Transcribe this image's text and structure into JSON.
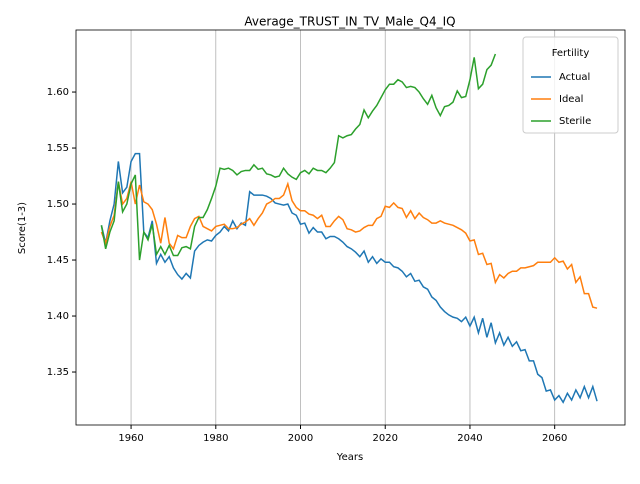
{
  "chart_data": {
    "type": "line",
    "title": "Average_TRUST_IN_TV_Male_Q4_IQ",
    "x_label": "Years",
    "y_label": "Score(1-3)",
    "x": [
      1953,
      1954,
      1955,
      1956,
      1957,
      1958,
      1959,
      1960,
      1961,
      1962,
      1963,
      1964,
      1965,
      1966,
      1967,
      1968,
      1969,
      1970,
      1971,
      1972,
      1973,
      1974,
      1975,
      1976,
      1977,
      1978,
      1979,
      1980,
      1981,
      1982,
      1983,
      1984,
      1985,
      1986,
      1987,
      1988,
      1989,
      1990,
      1991,
      1992,
      1993,
      1994,
      1995,
      1996,
      1997,
      1998,
      1999,
      2000,
      2001,
      2002,
      2003,
      2004,
      2005,
      2006,
      2007,
      2008,
      2009,
      2010,
      2011,
      2012,
      2013,
      2014,
      2015,
      2016,
      2017,
      2018,
      2019,
      2020,
      2021,
      2022,
      2023,
      2024,
      2025,
      2026,
      2027,
      2028,
      2029,
      2030,
      2031,
      2032,
      2033,
      2034,
      2035,
      2036,
      2037,
      2038,
      2039,
      2040,
      2041,
      2042,
      2043,
      2044,
      2045,
      2046,
      2047,
      2048,
      2049,
      2050,
      2051,
      2052,
      2053,
      2054,
      2055,
      2056,
      2057,
      2058,
      2059,
      2060,
      2061,
      2062,
      2063,
      2064,
      2065,
      2066,
      2067,
      2068,
      2069,
      2070
    ],
    "series": [
      {
        "name": "Actual",
        "color": "#1f77b4",
        "values": [
          1.481,
          1.465,
          1.485,
          1.5,
          1.538,
          1.51,
          1.515,
          1.538,
          1.545,
          1.545,
          1.475,
          1.47,
          1.485,
          1.447,
          1.455,
          1.448,
          1.453,
          1.443,
          1.437,
          1.433,
          1.438,
          1.434,
          1.458,
          1.463,
          1.466,
          1.468,
          1.467,
          1.472,
          1.475,
          1.48,
          1.476,
          1.485,
          1.478,
          1.483,
          1.481,
          1.511,
          1.508,
          1.508,
          1.508,
          1.507,
          1.505,
          1.501,
          1.5,
          1.499,
          1.5,
          1.492,
          1.49,
          1.482,
          1.483,
          1.474,
          1.479,
          1.475,
          1.475,
          1.469,
          1.471,
          1.471,
          1.469,
          1.466,
          1.462,
          1.46,
          1.457,
          1.453,
          1.458,
          1.448,
          1.453,
          1.447,
          1.451,
          1.448,
          1.448,
          1.444,
          1.443,
          1.44,
          1.435,
          1.438,
          1.431,
          1.432,
          1.426,
          1.424,
          1.417,
          1.414,
          1.408,
          1.404,
          1.401,
          1.399,
          1.398,
          1.395,
          1.399,
          1.391,
          1.399,
          1.385,
          1.398,
          1.381,
          1.394,
          1.376,
          1.385,
          1.374,
          1.381,
          1.373,
          1.377,
          1.369,
          1.37,
          1.36,
          1.36,
          1.348,
          1.345,
          1.333,
          1.334,
          1.325,
          1.329,
          1.323,
          1.331,
          1.325,
          1.334,
          1.327,
          1.337,
          1.327,
          1.337,
          1.324
        ]
      },
      {
        "name": "Ideal",
        "color": "#ff7f0e",
        "values": [
          1.475,
          1.465,
          1.48,
          1.49,
          1.52,
          1.5,
          1.505,
          1.52,
          1.5,
          1.517,
          1.502,
          1.5,
          1.495,
          1.482,
          1.465,
          1.488,
          1.465,
          1.46,
          1.472,
          1.47,
          1.47,
          1.48,
          1.487,
          1.489,
          1.48,
          1.478,
          1.476,
          1.48,
          1.481,
          1.482,
          1.478,
          1.478,
          1.479,
          1.482,
          1.484,
          1.487,
          1.481,
          1.487,
          1.492,
          1.5,
          1.502,
          1.505,
          1.505,
          1.508,
          1.518,
          1.503,
          1.497,
          1.494,
          1.494,
          1.491,
          1.49,
          1.487,
          1.49,
          1.48,
          1.48,
          1.485,
          1.489,
          1.486,
          1.478,
          1.477,
          1.475,
          1.476,
          1.479,
          1.481,
          1.481,
          1.487,
          1.489,
          1.498,
          1.497,
          1.501,
          1.497,
          1.496,
          1.488,
          1.494,
          1.487,
          1.492,
          1.488,
          1.486,
          1.483,
          1.483,
          1.485,
          1.483,
          1.482,
          1.481,
          1.479,
          1.477,
          1.474,
          1.467,
          1.468,
          1.455,
          1.456,
          1.446,
          1.447,
          1.43,
          1.437,
          1.434,
          1.438,
          1.44,
          1.44,
          1.443,
          1.443,
          1.444,
          1.445,
          1.448,
          1.448,
          1.448,
          1.448,
          1.452,
          1.448,
          1.449,
          1.442,
          1.446,
          1.43,
          1.435,
          1.42,
          1.42,
          1.408,
          1.407
        ]
      },
      {
        "name": "Sterile",
        "color": "#2ca02c",
        "values": [
          1.481,
          1.46,
          1.475,
          1.485,
          1.52,
          1.493,
          1.5,
          1.518,
          1.526,
          1.45,
          1.475,
          1.468,
          1.482,
          1.455,
          1.462,
          1.455,
          1.463,
          1.454,
          1.454,
          1.461,
          1.462,
          1.46,
          1.48,
          1.488,
          1.488,
          1.495,
          1.505,
          1.516,
          1.532,
          1.531,
          1.532,
          1.53,
          1.526,
          1.529,
          1.53,
          1.53,
          1.535,
          1.531,
          1.532,
          1.527,
          1.526,
          1.524,
          1.525,
          1.532,
          1.527,
          1.524,
          1.522,
          1.528,
          1.53,
          1.527,
          1.532,
          1.53,
          1.53,
          1.528,
          1.532,
          1.537,
          1.561,
          1.559,
          1.561,
          1.562,
          1.567,
          1.571,
          1.584,
          1.577,
          1.583,
          1.588,
          1.595,
          1.602,
          1.607,
          1.607,
          1.611,
          1.609,
          1.604,
          1.605,
          1.604,
          1.6,
          1.594,
          1.589,
          1.597,
          1.586,
          1.579,
          1.587,
          1.588,
          1.591,
          1.601,
          1.595,
          1.596,
          1.611,
          1.631,
          1.603,
          1.607,
          1.62,
          1.624,
          1.634,
          null,
          null,
          null,
          null,
          null,
          null,
          null,
          null,
          null,
          null,
          null,
          null,
          null,
          null,
          null,
          null,
          null,
          null,
          null,
          null,
          null,
          null,
          null,
          null
        ]
      }
    ],
    "legend_title": "Fertility",
    "legend": "upper right",
    "xlim": [
      1947,
      2076.6
    ],
    "ylim": [
      1.3027,
      1.6554
    ],
    "xticks": [
      1960,
      1980,
      2000,
      2020,
      2040,
      2060
    ],
    "yticks": [
      1.35,
      {
        "value": 1.4,
        "label": "1.40"
      },
      1.45,
      {
        "value": 1.5,
        "label": "1.50"
      },
      1.55,
      {
        "value": 1.6,
        "label": "1.60"
      }
    ],
    "grid": "x"
  }
}
